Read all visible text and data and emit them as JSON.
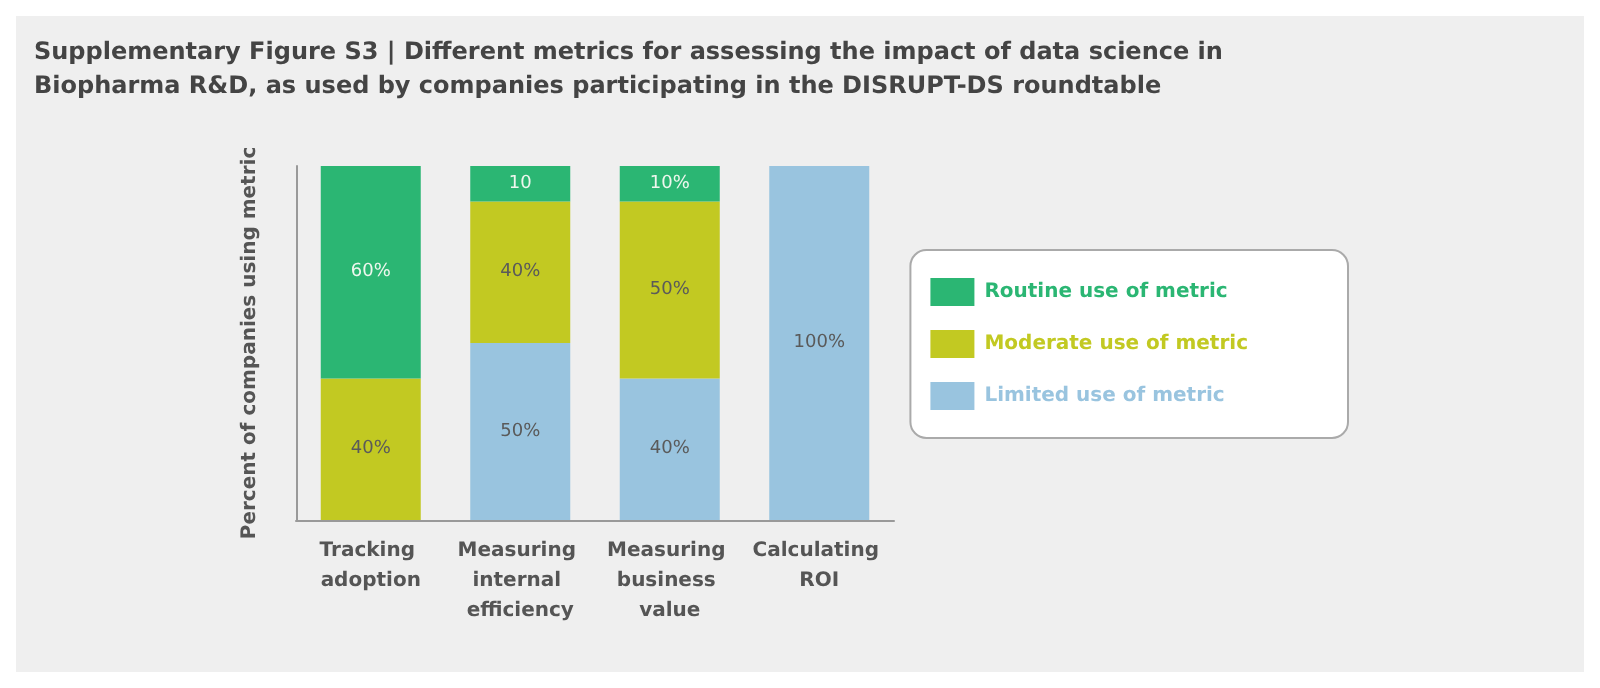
{
  "chart_data": {
    "type": "bar",
    "title": "Supplementary Figure S3 | Different metrics for assessing the impact of data science in Biopharma R&D, as used by companies participating in the DISRUPT-DS roundtable",
    "ylabel": "Percent of companies using metric",
    "categories": [
      "Tracking adoption",
      "Measuring internal efficiency",
      "Measuring business value",
      "Calculating ROI"
    ],
    "stacked": true,
    "ylim": [
      0,
      100
    ],
    "tick_labels": "x",
    "legend": "right",
    "grid": false,
    "series": [
      {
        "name": "Limited use of metric",
        "color": "#99c4df",
        "values": [
          null,
          50,
          40,
          100
        ],
        "value_labels": [
          null,
          "50%",
          "40%",
          "100%"
        ]
      },
      {
        "name": "Moderate use of metric",
        "color": "#c2c922",
        "values": [
          40,
          40,
          50,
          null
        ],
        "value_labels": [
          "40%",
          "40%",
          "50%",
          null
        ]
      },
      {
        "name": "Routine use of metric",
        "color": "#2bb673",
        "values": [
          60,
          10,
          10,
          null
        ],
        "value_labels": [
          "60%",
          "10",
          "10%",
          null
        ]
      }
    ]
  }
}
